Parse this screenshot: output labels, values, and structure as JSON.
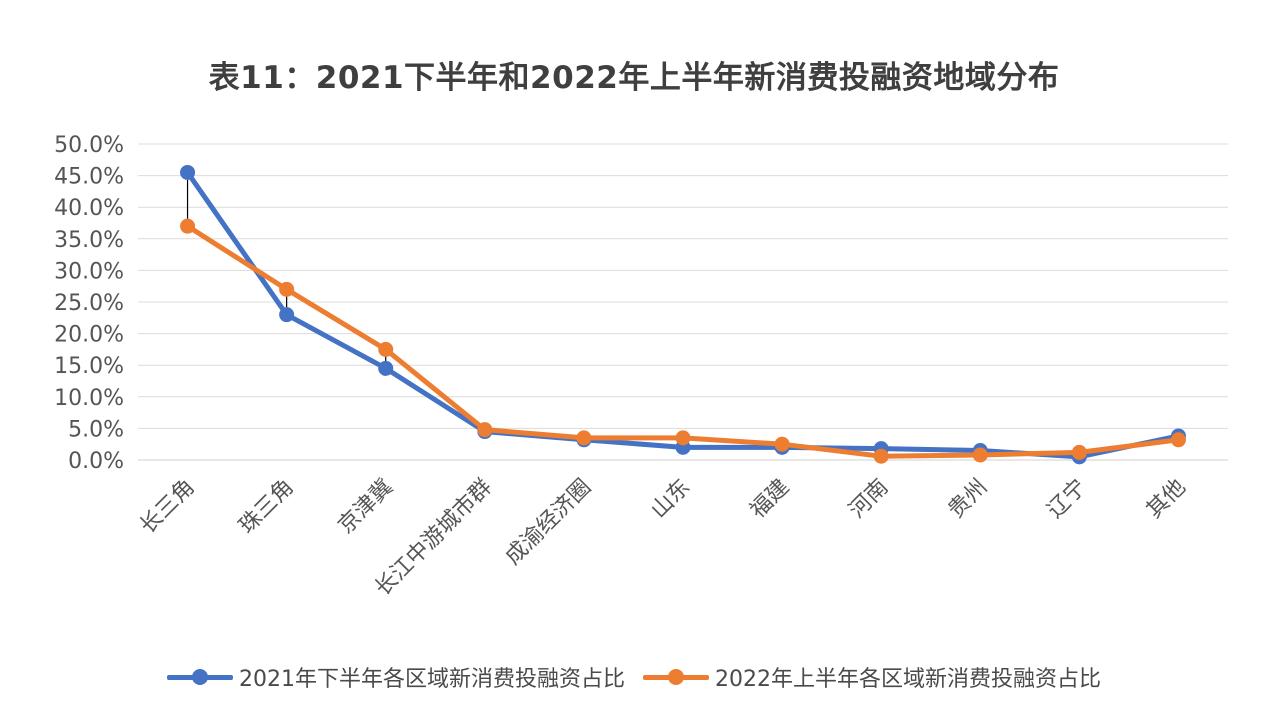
{
  "chart_data": {
    "type": "line",
    "title": "表11：2021下半年和2022年上半年新消费投融资地域分布",
    "categories": [
      "长三角",
      "珠三角",
      "京津冀",
      "长江中游城市群",
      "成渝经济圈",
      "山东",
      "福建",
      "河南",
      "贵州",
      "辽宁",
      "其他"
    ],
    "series": [
      {
        "name": "2021年下半年各区域新消费投融资占比",
        "color": "#4472c4",
        "values": [
          45.5,
          23.0,
          14.5,
          4.5,
          3.2,
          2.0,
          2.0,
          1.8,
          1.5,
          0.5,
          3.8
        ]
      },
      {
        "name": "2022年上半年各区域新消费投融资占比",
        "color": "#ed7d31",
        "values": [
          37.0,
          27.0,
          17.5,
          4.8,
          3.5,
          3.5,
          2.5,
          0.6,
          0.8,
          1.2,
          3.2
        ]
      }
    ],
    "ylim": [
      0,
      50
    ],
    "yticks": [
      "0.0%",
      "5.0%",
      "10.0%",
      "15.0%",
      "20.0%",
      "25.0%",
      "30.0%",
      "35.0%",
      "40.0%",
      "45.0%",
      "50.0%"
    ],
    "grid": true,
    "legend": "bottom",
    "high_low_lines": true
  }
}
